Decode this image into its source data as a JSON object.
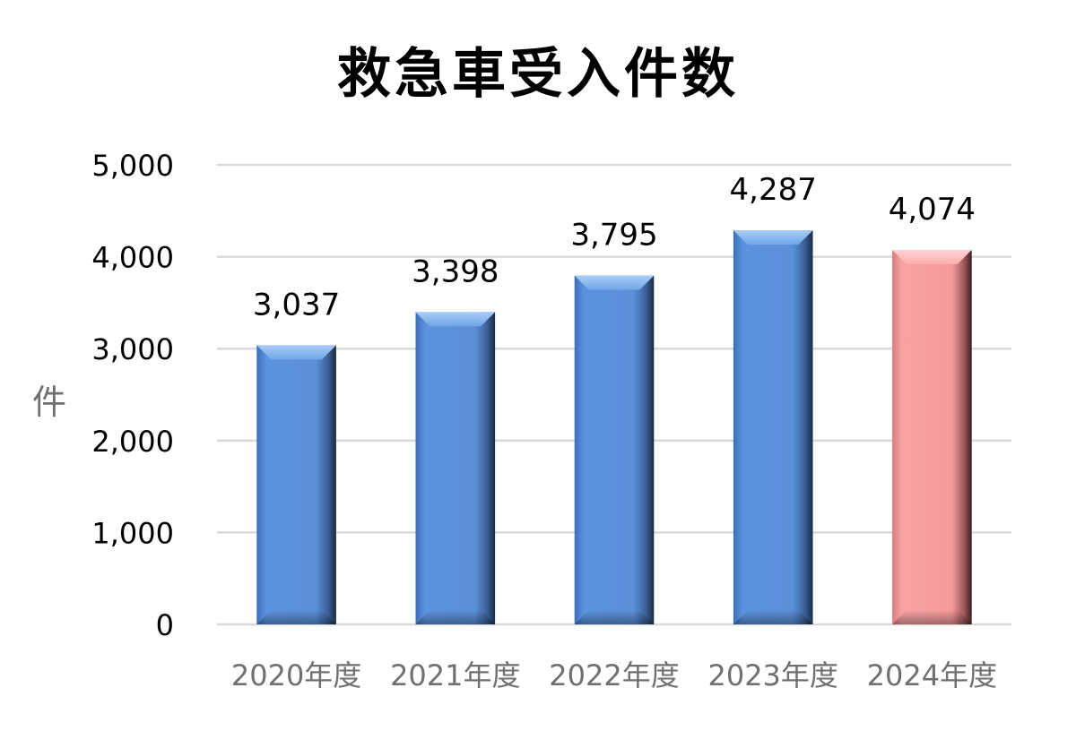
{
  "chart_data": {
    "type": "bar",
    "title": "救急車受入件数",
    "ylabel": "件",
    "xlabel": "",
    "categories": [
      "2020年度",
      "2021年度",
      "2022年度",
      "2023年度",
      "2024年度"
    ],
    "values": [
      3037,
      3398,
      3795,
      4287,
      4074
    ],
    "value_labels": [
      "3,037",
      "3,398",
      "3,795",
      "4,287",
      "4,074"
    ],
    "ylim": [
      0,
      5000
    ],
    "y_ticks": [
      0,
      1000,
      2000,
      3000,
      4000,
      5000
    ],
    "y_tick_labels": [
      "0",
      "1,000",
      "2,000",
      "3,000",
      "4,000",
      "5,000"
    ],
    "grid": true,
    "legend": "none",
    "bar_colors": [
      "#5b8fd8",
      "#5b8fd8",
      "#5b8fd8",
      "#5b8fd8",
      "#f59a9a"
    ],
    "highlighted_category": "2024年度"
  }
}
